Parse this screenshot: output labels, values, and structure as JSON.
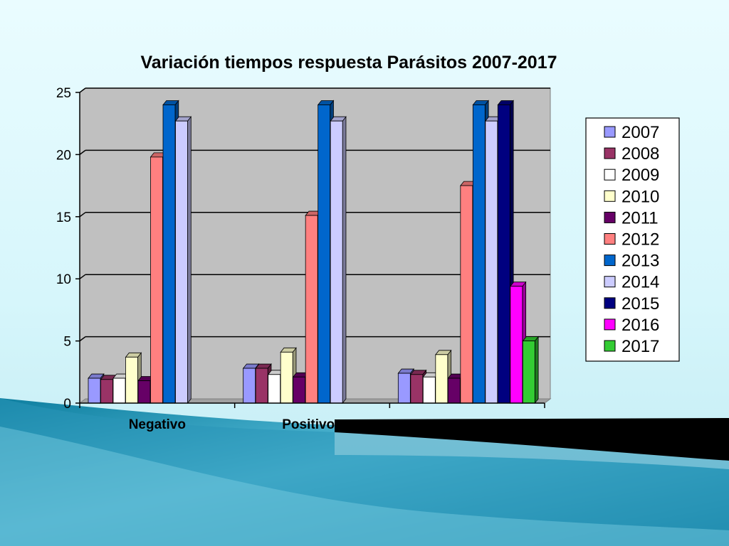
{
  "chart_data": {
    "type": "bar",
    "title": "Variación tiempos respuesta Parásitos 2007-2017",
    "xlabel": "",
    "ylabel": "",
    "ylim": [
      0,
      25
    ],
    "yticks": [
      0,
      5,
      10,
      15,
      20,
      25
    ],
    "grid": true,
    "legend_position": "right",
    "categories": [
      "Negativo",
      "Positivos",
      ""
    ],
    "series": [
      {
        "name": "2007",
        "color": "#9999ff",
        "values": [
          2.0,
          2.8,
          2.4
        ]
      },
      {
        "name": "2008",
        "color": "#993366",
        "values": [
          1.9,
          2.8,
          2.3
        ]
      },
      {
        "name": "2009",
        "color": "#ffffff",
        "values": [
          2.0,
          2.3,
          2.1
        ]
      },
      {
        "name": "2010",
        "color": "#ffffcc",
        "values": [
          3.7,
          4.1,
          3.9
        ]
      },
      {
        "name": "2011",
        "color": "#660066",
        "values": [
          1.8,
          2.1,
          2.0
        ]
      },
      {
        "name": "2012",
        "color": "#ff8080",
        "values": [
          19.8,
          15.1,
          17.5
        ]
      },
      {
        "name": "2013",
        "color": "#0066cc",
        "values": [
          24.0,
          24.0,
          24.0
        ]
      },
      {
        "name": "2014",
        "color": "#ccccff",
        "values": [
          22.7,
          22.7,
          22.7
        ]
      },
      {
        "name": "2015",
        "color": "#000080",
        "values": [
          null,
          null,
          24.0
        ]
      },
      {
        "name": "2016",
        "color": "#ff00ff",
        "values": [
          null,
          null,
          9.4
        ]
      },
      {
        "name": "2017",
        "color": "#33cc33",
        "values": [
          null,
          null,
          5.0
        ]
      }
    ]
  }
}
